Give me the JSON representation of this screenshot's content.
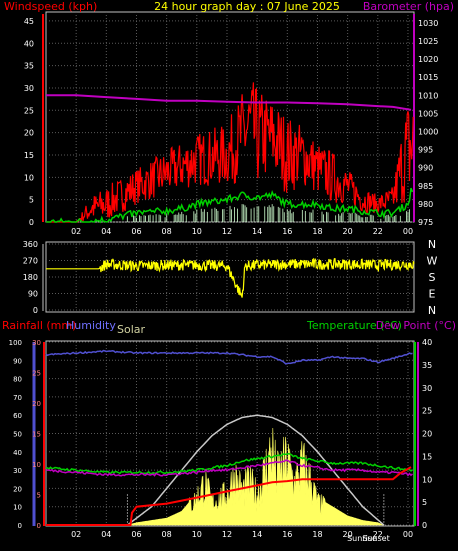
{
  "chart_data": [
    {
      "type": "line",
      "title": "24 hour graph day : 07 June 2025",
      "left_label": "Windspeed (kph)",
      "right_label": "Barometer (hpa)",
      "left_ticks": [
        "0",
        "5",
        "10",
        "15",
        "20",
        "25",
        "30",
        "35",
        "40",
        "45"
      ],
      "right_ticks": [
        "975",
        "980",
        "985",
        "990",
        "995",
        "1000",
        "1005",
        "1010",
        "1015",
        "1020",
        "1025",
        "1030"
      ],
      "ylim_left": [
        0,
        47
      ],
      "ylim_right": [
        975,
        1033
      ],
      "xlim_hours": [
        0,
        24.4
      ],
      "x_ticks": [
        {
          "h": 2,
          "label": "02"
        },
        {
          "h": 4,
          "label": "04"
        },
        {
          "h": 6,
          "label": "06"
        },
        {
          "h": 8,
          "label": "08"
        },
        {
          "h": 10,
          "label": "10"
        },
        {
          "h": 12,
          "label": "12"
        },
        {
          "h": 14,
          "label": "14"
        },
        {
          "h": 16,
          "label": "16"
        },
        {
          "h": 18,
          "label": "18"
        },
        {
          "h": 20,
          "label": "20"
        },
        {
          "h": 22,
          "label": "22"
        },
        {
          "h": 24,
          "label": "00"
        }
      ],
      "series": [
        {
          "key": "gust",
          "color": "#ff0000",
          "approx_range_by_hour": [
            [
              0,
              0,
              0
            ],
            [
              2,
              0,
              0
            ],
            [
              3,
              0,
              6
            ],
            [
              4,
              0,
              8
            ],
            [
              6,
              4,
              12
            ],
            [
              8,
              6,
              16
            ],
            [
              10,
              8,
              20
            ],
            [
              12,
              8,
              22
            ],
            [
              13.5,
              10,
              33
            ],
            [
              14,
              8,
              30
            ],
            [
              15,
              10,
              28
            ],
            [
              16,
              6,
              24
            ],
            [
              17,
              8,
              22
            ],
            [
              18,
              6,
              18
            ],
            [
              19,
              4,
              16
            ],
            [
              20,
              4,
              12
            ],
            [
              21,
              2,
              8
            ],
            [
              22,
              2,
              6
            ],
            [
              23,
              2,
              8
            ],
            [
              23.8,
              4,
              26
            ],
            [
              24.2,
              4,
              30
            ]
          ]
        },
        {
          "key": "average",
          "color": "#00d000",
          "points": [
            [
              0,
              0
            ],
            [
              2,
              0
            ],
            [
              4,
              0.5
            ],
            [
              6,
              2
            ],
            [
              8,
              2.5
            ],
            [
              9,
              3
            ],
            [
              10,
              4
            ],
            [
              11,
              4.5
            ],
            [
              12,
              5
            ],
            [
              13,
              6
            ],
            [
              14,
              5.5
            ],
            [
              15,
              6
            ],
            [
              16,
              4
            ],
            [
              17,
              4
            ],
            [
              18,
              4
            ],
            [
              19,
              3
            ],
            [
              20,
              3
            ],
            [
              21,
              2.5
            ],
            [
              22,
              2
            ],
            [
              23,
              2
            ],
            [
              24,
              4
            ],
            [
              24.2,
              7
            ]
          ]
        },
        {
          "key": "barometer",
          "color": "#c000c0",
          "points": [
            [
              0,
              1010
            ],
            [
              2,
              1010
            ],
            [
              4,
              1009.5
            ],
            [
              6,
              1009
            ],
            [
              8,
              1008.5
            ],
            [
              10,
              1008.5
            ],
            [
              12,
              1008.2
            ],
            [
              14,
              1008
            ],
            [
              16,
              1008
            ],
            [
              18,
              1007.8
            ],
            [
              20,
              1007.5
            ],
            [
              22,
              1007
            ],
            [
              23,
              1006.8
            ],
            [
              24.2,
              1006
            ]
          ]
        }
      ]
    },
    {
      "type": "line",
      "left_ticks": [
        "0",
        "90",
        "180",
        "270",
        "360"
      ],
      "right_labels": [
        "N",
        "W",
        "S",
        "E",
        "N"
      ],
      "ylim": [
        0,
        360
      ],
      "series": [
        {
          "key": "wind_direction",
          "color": "#ffff00",
          "points": [
            [
              0,
              225
            ],
            [
              3.5,
              225
            ],
            [
              4,
              250
            ],
            [
              6,
              240
            ],
            [
              8,
              245
            ],
            [
              10,
              245
            ],
            [
              12,
              240
            ],
            [
              13,
              70
            ],
            [
              13.2,
              240
            ],
            [
              14,
              245
            ],
            [
              16,
              250
            ],
            [
              18,
              250
            ],
            [
              20,
              250
            ],
            [
              22,
              245
            ],
            [
              24.2,
              250
            ]
          ]
        }
      ]
    },
    {
      "type": "line",
      "left_label_rain": "Rainfall (mm)",
      "left_label_humidity": "Humidity",
      "solar_label": "Solar",
      "right_label_temp": "Temperature (°C)",
      "right_label_dew": "Dew Point (°C)",
      "sunrise_label": "Sunrise",
      "sunset_label": "Sunset",
      "humidity_ticks": [
        "0",
        "10",
        "20",
        "30",
        "40",
        "50",
        "60",
        "70",
        "80",
        "90",
        "100"
      ],
      "rain_ticks": [
        "0",
        "5",
        "10",
        "15",
        "20",
        "25",
        "30"
      ],
      "temp_ticks": [
        "0",
        "5",
        "10",
        "15",
        "20",
        "25",
        "30",
        "35",
        "40"
      ],
      "ylim_humidity": [
        0,
        100
      ],
      "ylim_rain": [
        0,
        30
      ],
      "ylim_temp": [
        0,
        40
      ],
      "x_ticks": [
        {
          "h": 2,
          "label": "02"
        },
        {
          "h": 4,
          "label": "04"
        },
        {
          "h": 6,
          "label": "06"
        },
        {
          "h": 8,
          "label": "08"
        },
        {
          "h": 10,
          "label": "10"
        },
        {
          "h": 12,
          "label": "12"
        },
        {
          "h": 14,
          "label": "14"
        },
        {
          "h": 16,
          "label": "16"
        },
        {
          "h": 18,
          "label": "18"
        },
        {
          "h": 20,
          "label": "20"
        },
        {
          "h": 22,
          "label": "22"
        },
        {
          "h": 24,
          "label": "00"
        }
      ],
      "sunrise_hour": 5.4,
      "sunset_hour": 22.4,
      "series": [
        {
          "key": "solar_clear_sky",
          "color": "#c8c8c8",
          "points": [
            [
              5.4,
              0
            ],
            [
              7,
              4
            ],
            [
              8,
              8
            ],
            [
              9,
              12
            ],
            [
              10,
              16
            ],
            [
              11,
              19.5
            ],
            [
              12,
              22
            ],
            [
              13,
              23.5
            ],
            [
              14,
              24
            ],
            [
              15,
              23.5
            ],
            [
              16,
              22
            ],
            [
              17,
              19.5
            ],
            [
              18,
              16
            ],
            [
              19,
              12
            ],
            [
              20,
              8
            ],
            [
              21,
              4
            ],
            [
              22.4,
              0
            ]
          ]
        },
        {
          "key": "solar",
          "color": "#ffff60",
          "points": [
            [
              5.4,
              0
            ],
            [
              6,
              0.5
            ],
            [
              7,
              1
            ],
            [
              8,
              1.5
            ],
            [
              9,
              3
            ],
            [
              10,
              7
            ],
            [
              10.5,
              11
            ],
            [
              11,
              6
            ],
            [
              12,
              8
            ],
            [
              12.5,
              13
            ],
            [
              13,
              9
            ],
            [
              13.5,
              11
            ],
            [
              14,
              8
            ],
            [
              14.5,
              14
            ],
            [
              15,
              20
            ],
            [
              15.3,
              13
            ],
            [
              16,
              17
            ],
            [
              16.5,
              11
            ],
            [
              17,
              16
            ],
            [
              17.5,
              12
            ],
            [
              18,
              6
            ],
            [
              19,
              4
            ],
            [
              20,
              2
            ],
            [
              21,
              1
            ],
            [
              22,
              0.5
            ],
            [
              22.4,
              0
            ]
          ]
        },
        {
          "key": "humidity",
          "color": "#5050d0",
          "points": [
            [
              0,
              93
            ],
            [
              2,
              94
            ],
            [
              4,
              95
            ],
            [
              6,
              94
            ],
            [
              8,
              94
            ],
            [
              10,
              94
            ],
            [
              12,
              94
            ],
            [
              13,
              93
            ],
            [
              14,
              92
            ],
            [
              15,
              92
            ],
            [
              16,
              88
            ],
            [
              17,
              90
            ],
            [
              18,
              90
            ],
            [
              19,
              92
            ],
            [
              20,
              91
            ],
            [
              21,
              91
            ],
            [
              22,
              89
            ],
            [
              23,
              91
            ],
            [
              24.2,
              94
            ]
          ]
        },
        {
          "key": "temperature",
          "color": "#00d000",
          "points": [
            [
              0,
              12.5
            ],
            [
              2,
              12
            ],
            [
              4,
              11.5
            ],
            [
              6,
              11.5
            ],
            [
              8,
              11.5
            ],
            [
              10,
              12
            ],
            [
              11,
              12.5
            ],
            [
              12,
              13
            ],
            [
              13,
              14
            ],
            [
              14,
              14.5
            ],
            [
              15,
              15
            ],
            [
              16,
              15.5
            ],
            [
              17,
              14.5
            ],
            [
              18,
              14
            ],
            [
              19,
              13.5
            ],
            [
              20,
              13.5
            ],
            [
              21,
              13.5
            ],
            [
              22,
              13
            ],
            [
              23,
              12.5
            ],
            [
              24.2,
              12
            ]
          ]
        },
        {
          "key": "dew_point",
          "color": "#c000c0",
          "points": [
            [
              0,
              12
            ],
            [
              2,
              11.5
            ],
            [
              4,
              11
            ],
            [
              6,
              11
            ],
            [
              8,
              11
            ],
            [
              10,
              11.5
            ],
            [
              11,
              12
            ],
            [
              12,
              12
            ],
            [
              13,
              12.5
            ],
            [
              14,
              13
            ],
            [
              15,
              13.5
            ],
            [
              16,
              14
            ],
            [
              17,
              13
            ],
            [
              18,
              12.5
            ],
            [
              19,
              12
            ],
            [
              20,
              12
            ],
            [
              21,
              12
            ],
            [
              22,
              11.5
            ],
            [
              23,
              11.5
            ],
            [
              24.2,
              11
            ]
          ]
        },
        {
          "key": "rainfall",
          "color": "#ff0000",
          "points": [
            [
              0,
              0
            ],
            [
              5.6,
              0
            ],
            [
              5.7,
              2
            ],
            [
              6,
              3
            ],
            [
              8,
              3.5
            ],
            [
              10,
              4.5
            ],
            [
              11,
              5
            ],
            [
              12,
              5.5
            ],
            [
              13,
              6
            ],
            [
              14,
              6.5
            ],
            [
              15,
              7
            ],
            [
              16,
              7.2
            ],
            [
              17,
              7.5
            ],
            [
              18,
              7.5
            ],
            [
              20,
              7.5
            ],
            [
              22,
              7.5
            ],
            [
              23,
              7.5
            ],
            [
              23.5,
              8.5
            ],
            [
              24.2,
              9.5
            ]
          ]
        }
      ]
    }
  ]
}
